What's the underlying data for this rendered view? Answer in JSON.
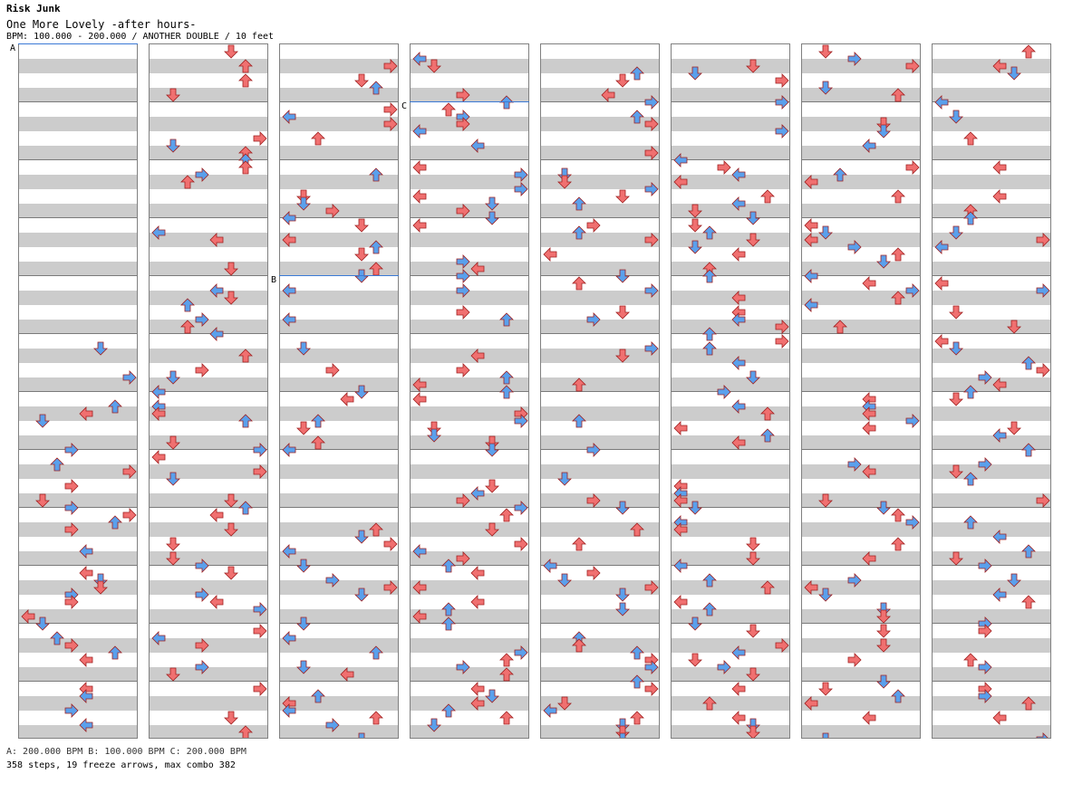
{
  "header": {
    "author": "Risk Junk",
    "song": "One More Lovely -after hours-",
    "info": "BPM: 100.000 - 200.000 / ANOTHER DOUBLE / 10 feet"
  },
  "footer": {
    "bpm_changes": "A: 200.000 BPM      B: 100.000 BPM      C: 200.000 BPM",
    "stats": "358 steps, 19 freeze arrows, max combo 382"
  },
  "bpm_markers": [
    {
      "label": "A",
      "column": 0,
      "measure": 0
    },
    {
      "label": "B",
      "column": 2,
      "measure": 4
    },
    {
      "label": "C",
      "column": 3,
      "measure": 1
    }
  ],
  "colors": {
    "quarter": "#f07070",
    "eighth": "#5aa0ec",
    "sixteenth": "#ec7aec",
    "freeze": "#40c040",
    "lane_stripe": "#cccccc"
  },
  "columns": 8,
  "measures_per_column": 12
}
